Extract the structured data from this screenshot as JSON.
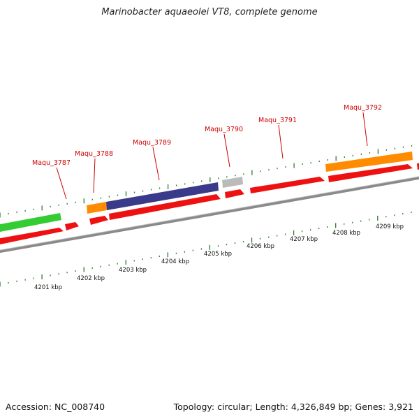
{
  "title": "Marinobacter aquaeolei VT8, complete genome",
  "footer": {
    "accession": "Accession: NC_008740",
    "summary": "Topology: circular; Length: 4,326,849 bp; Genes: 3,921"
  },
  "colors": {
    "forward_cds": "#ee0000",
    "reverse_cds": "#ee0000",
    "green": "#33cc33",
    "orange": "#ff8c00",
    "purple": "#3a3a8a",
    "gray": "#bbbbbb",
    "backbone": "#888888",
    "tick": "#2a7a2a",
    "label": "#cc0000"
  },
  "scale": {
    "kbp_labels": [
      "4201 kbp",
      "4202 kbp",
      "4203 kbp",
      "4204 kbp",
      "4205 kbp",
      "4206 kbp",
      "4207 kbp",
      "4208 kbp",
      "4209 kbp"
    ]
  },
  "genes": [
    {
      "name": "Maqu_3787"
    },
    {
      "name": "Maqu_3788"
    },
    {
      "name": "Maqu_3789"
    },
    {
      "name": "Maqu_3790"
    },
    {
      "name": "Maqu_3791"
    },
    {
      "name": "Maqu_3792"
    }
  ]
}
